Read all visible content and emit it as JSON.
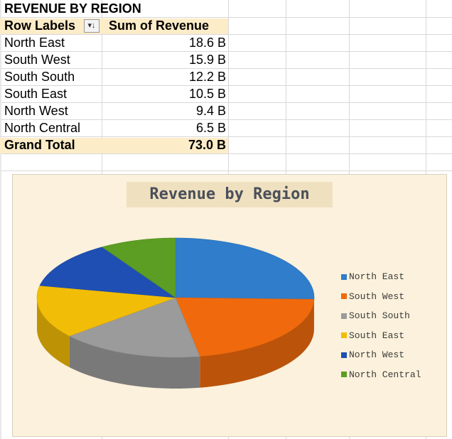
{
  "pivot": {
    "title": "REVENUE BY REGION",
    "header_label": "Row Labels",
    "filter_icon": "filter-sort-icon",
    "filter_glyph": "▾↓",
    "header_value": "Sum of Revenue",
    "rows": [
      {
        "label": "North East",
        "value": "18.6 B"
      },
      {
        "label": "South West",
        "value": "15.9 B"
      },
      {
        "label": "South South",
        "value": "12.2 B"
      },
      {
        "label": "South East",
        "value": "10.5 B"
      },
      {
        "label": "North West",
        "value": "9.4 B"
      },
      {
        "label": "North Central",
        "value": "6.5 B"
      }
    ],
    "total_label": "Grand Total",
    "total_value": "73.0 B",
    "header_fill": "#fdecc8"
  },
  "chart_data": {
    "type": "pie",
    "title": "Revenue by Region",
    "categories": [
      "North East",
      "South West",
      "South South",
      "South East",
      "North West",
      "North Central"
    ],
    "values": [
      18.6,
      15.9,
      12.2,
      10.5,
      9.4,
      6.5
    ],
    "colors": [
      "#2f7dcb",
      "#f06a0d",
      "#9b9b9b",
      "#f2bd06",
      "#1f4fb3",
      "#5b9e23"
    ],
    "legend": "right",
    "style": "3d"
  }
}
